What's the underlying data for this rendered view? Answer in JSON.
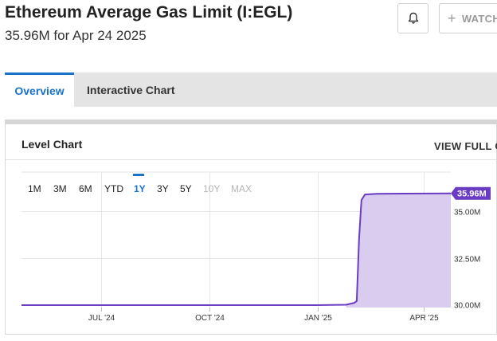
{
  "header": {
    "title": "Ethereum Average Gas Limit (I:EGL)",
    "subtitle": "35.96M for Apr 24 2025",
    "watch_label": "WATCH"
  },
  "tabs": [
    {
      "label": "Overview",
      "active": true
    },
    {
      "label": "Interactive Chart",
      "active": false
    }
  ],
  "card": {
    "title": "Level Chart",
    "view_full_label": "VIEW FULL CH"
  },
  "ranges": [
    {
      "label": "1M",
      "state": "normal"
    },
    {
      "label": "3M",
      "state": "normal"
    },
    {
      "label": "6M",
      "state": "normal"
    },
    {
      "label": "YTD",
      "state": "normal"
    },
    {
      "label": "1Y",
      "state": "active"
    },
    {
      "label": "3Y",
      "state": "normal"
    },
    {
      "label": "5Y",
      "state": "normal"
    },
    {
      "label": "10Y",
      "state": "disabled"
    },
    {
      "label": "MAX",
      "state": "disabled"
    }
  ],
  "colors": {
    "accent": "#1a72c9",
    "series_line": "#6a3cc4",
    "series_fill": "#d9ccef",
    "last_value_badge": "#6a3cc4"
  },
  "chart_data": {
    "type": "area",
    "x_tick_labels": [
      "JUL '24",
      "OCT '24",
      "JAN '25",
      "APR '25"
    ],
    "y_tick_labels": [
      "35.00M",
      "32.50M",
      "30.00M"
    ],
    "ylim": [
      29.85,
      37.1
    ],
    "xlim": [
      "2024-04-24",
      "2025-04-24"
    ],
    "grid": true,
    "last_value_label": "35.96M",
    "series": [
      {
        "x": [
          "2024-04-24",
          "2024-07-01",
          "2024-10-01",
          "2024-12-31",
          "2025-01-25",
          "2025-02-01",
          "2025-02-03",
          "2025-02-05",
          "2025-02-07",
          "2025-02-10",
          "2025-02-20",
          "2025-03-15",
          "2025-04-24"
        ],
        "values": [
          29.98,
          29.98,
          29.98,
          29.98,
          30.0,
          30.1,
          30.2,
          33.5,
          35.6,
          35.9,
          35.94,
          35.95,
          35.96
        ]
      }
    ]
  }
}
